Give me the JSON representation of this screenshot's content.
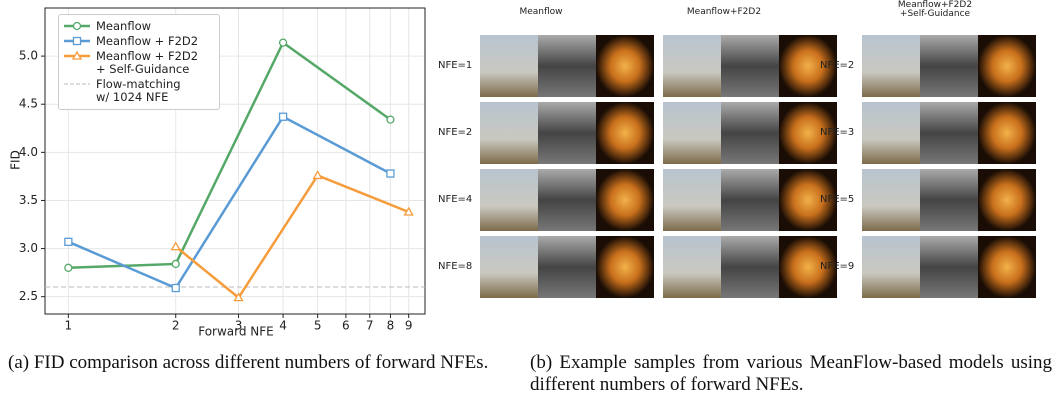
{
  "chart_data": {
    "type": "line",
    "y_label": "FID",
    "x_label": "Forward NFE",
    "log_x": true,
    "grid": true,
    "legend": "upper left",
    "xlim": [
      0.86,
      10
    ],
    "xticks": [
      1,
      2,
      3,
      4,
      5,
      6,
      7,
      8,
      9
    ],
    "ylim": [
      2.32,
      5.5
    ],
    "yticks": [
      2.5,
      {
        "value": 3,
        "label": "3.0"
      },
      3.5,
      {
        "value": 4,
        "label": "4.0"
      },
      4.5,
      {
        "value": 5,
        "label": "5.0"
      }
    ],
    "series": [
      {
        "name": "Meanflow",
        "color": "#55a868",
        "marker": "circle",
        "x": [
          1,
          2,
          4,
          8
        ],
        "values": [
          2.8,
          2.84,
          5.14,
          4.34
        ]
      },
      {
        "name": "Meanflow + F2D2",
        "color": "#5a9bd5",
        "marker": "square",
        "x": [
          1,
          2,
          4,
          8
        ],
        "values": [
          3.07,
          2.59,
          4.37,
          3.78
        ]
      },
      {
        "name": "Meanflow + F2D2\n+ Self-Guidance",
        "color": "#f59c3c",
        "marker": "triangle",
        "x": [
          2,
          3,
          5,
          9
        ],
        "values": [
          3.02,
          2.49,
          3.76,
          3.38
        ]
      }
    ],
    "reference": {
      "name": "Flow-matching\nw/ 1024 NFE",
      "value": 2.6,
      "color": "#bbbbbb"
    }
  },
  "samples": {
    "columns": [
      "Meanflow",
      "Meanflow+F2D2",
      "Meanflow+F2D2\n+Self-Guidance"
    ],
    "row_labels_left": [
      "NFE=1",
      "NFE=2",
      "NFE=4",
      "NFE=8"
    ],
    "row_labels_right": [
      "NFE=2",
      "NFE=3",
      "NFE=5",
      "NFE=9"
    ]
  },
  "captions": {
    "a": "(a) FID comparison across different numbers of forward NFEs.",
    "b": "(b) Example samples from various MeanFlow-based models using different numbers of forward NFEs."
  }
}
